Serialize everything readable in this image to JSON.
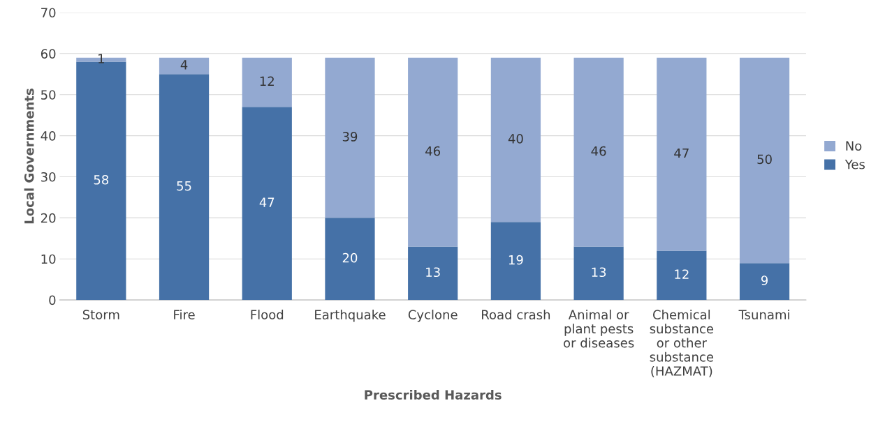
{
  "chart_data": {
    "type": "bar",
    "stacked": true,
    "xlabel": "Prescribed Hazards",
    "ylabel": "Local Governments",
    "categories": [
      "Storm",
      "Fire",
      "Flood",
      "Earthquake",
      "Cyclone",
      "Road crash",
      "Animal or\nplant pests\nor diseases",
      "Chemical\nsubstance\nor other\nsubstance\n(HAZMAT)",
      "Tsunami"
    ],
    "series": [
      {
        "name": "Yes",
        "color": "#4571a7",
        "values": [
          58,
          55,
          47,
          20,
          13,
          19,
          13,
          12,
          9
        ]
      },
      {
        "name": "No",
        "color": "#93a9d1",
        "values": [
          1,
          4,
          12,
          39,
          46,
          40,
          46,
          47,
          50
        ]
      }
    ],
    "ylim": [
      0,
      70
    ],
    "yticks": [
      0,
      10,
      20,
      30,
      40,
      50,
      60,
      70
    ],
    "grid": "y",
    "legend": "right",
    "data_labels": true
  }
}
